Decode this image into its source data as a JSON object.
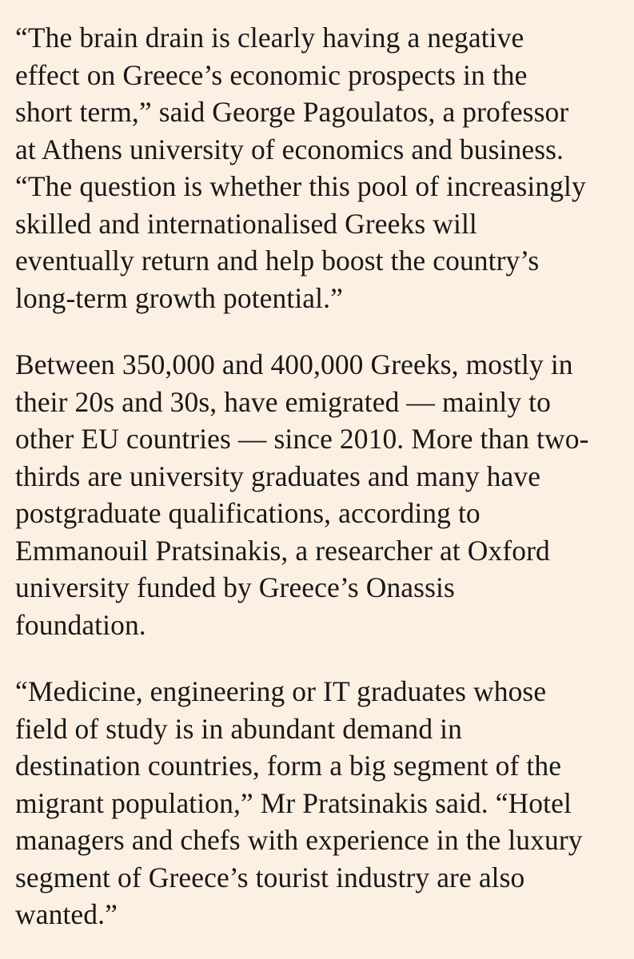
{
  "article": {
    "paragraphs": [
      {
        "lines": [
          "“The brain drain is clearly having a negative",
          "effect on Greece’s economic prospects in the",
          "short term,” said George Pagoulatos, a professor",
          "at Athens university of economics and business.",
          "“The question is whether this pool of increasingly",
          "skilled and internationalised Greeks will",
          "eventually return and help boost the country’s",
          "long-term growth potential.”"
        ]
      },
      {
        "lines": [
          "Between 350,000 and 400,000 Greeks, mostly in",
          "their 20s and 30s, have emigrated — mainly to",
          "other EU countries — since 2010. More than two-",
          "thirds are university graduates and many have",
          "postgraduate qualifications, according to",
          "Emmanouil Pratsinakis, a researcher at Oxford",
          "university funded by Greece’s Onassis",
          "foundation."
        ]
      },
      {
        "lines": [
          "“Medicine, engineering or IT graduates whose",
          "field of study is in abundant demand in",
          "destination countries, form a big segment of the",
          "migrant population,” Mr Pratsinakis said. “Hotel",
          "managers and chefs with experience in the luxury",
          "segment of Greece’s tourist industry are also",
          "wanted.”"
        ]
      }
    ]
  }
}
